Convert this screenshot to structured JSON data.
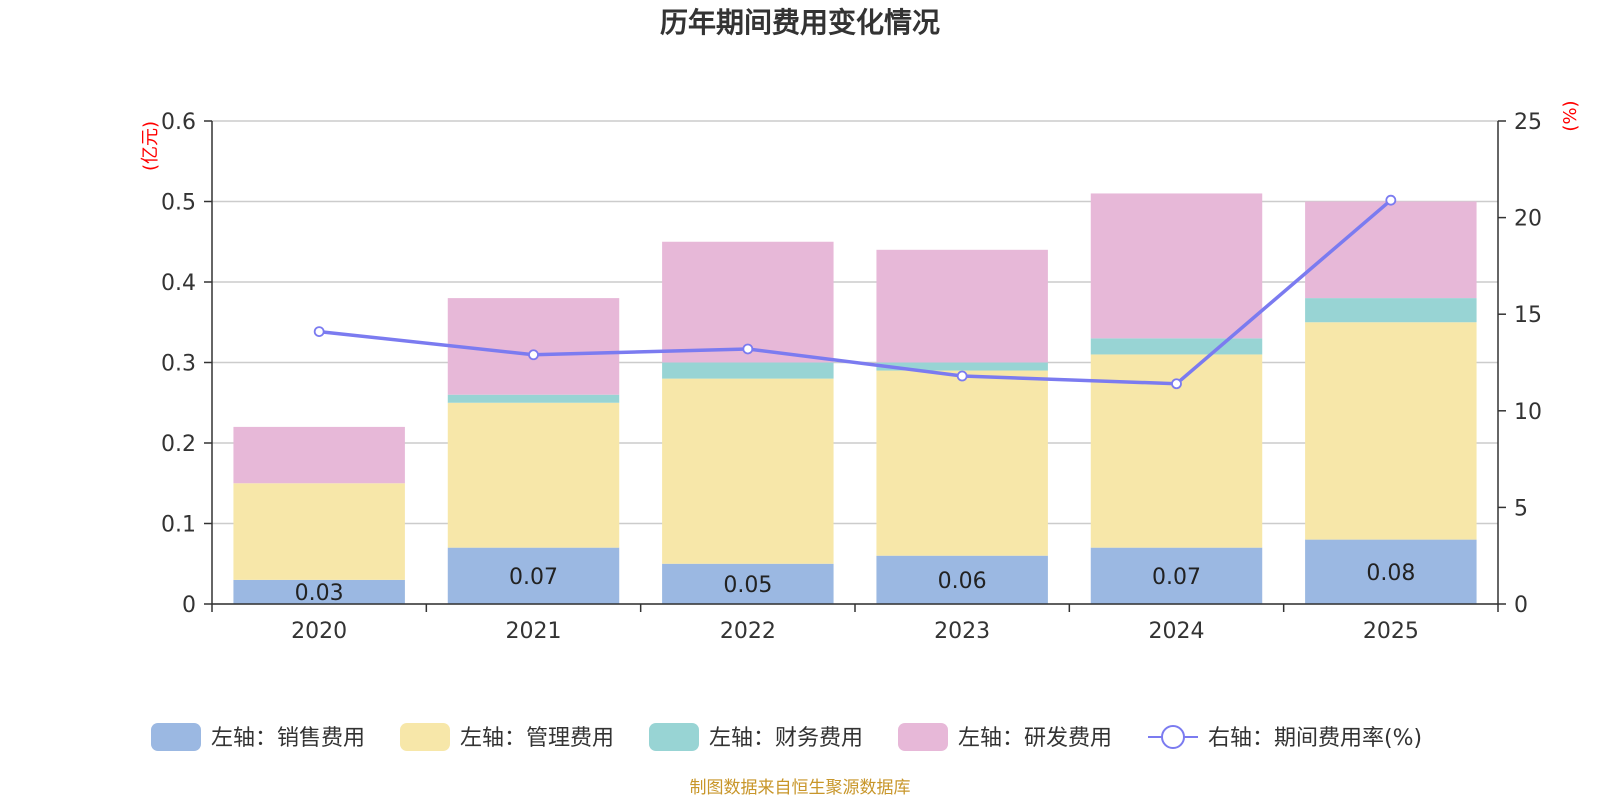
{
  "chart_data": {
    "type": "bar",
    "title": "历年期间费用变化情况",
    "categories": [
      "2020",
      "2021",
      "2022",
      "2023",
      "2024",
      "2025"
    ],
    "left_axis": {
      "unit": "(亿元)",
      "ylim": [
        0,
        0.6
      ],
      "ticks": [
        "0",
        "0.1",
        "0.2",
        "0.3",
        "0.4",
        "0.5",
        "0.6"
      ]
    },
    "right_axis": {
      "unit": "(%)",
      "ylim": [
        0,
        25
      ],
      "ticks": [
        "0",
        "5",
        "10",
        "15",
        "20",
        "25"
      ]
    },
    "series": [
      {
        "name": "左轴：销售费用",
        "kind": "bar",
        "axis": "left",
        "color": "#9bb8e2",
        "values": [
          0.03,
          0.07,
          0.05,
          0.06,
          0.07,
          0.08
        ],
        "labels": [
          "0.03",
          "0.07",
          "0.05",
          "0.06",
          "0.07",
          "0.08"
        ]
      },
      {
        "name": "左轴：管理费用",
        "kind": "bar",
        "axis": "left",
        "color": "#f7e7a9",
        "values": [
          0.12,
          0.18,
          0.23,
          0.23,
          0.24,
          0.27
        ]
      },
      {
        "name": "左轴：财务费用",
        "kind": "bar",
        "axis": "left",
        "color": "#98d4d4",
        "values": [
          0.0,
          0.01,
          0.02,
          0.01,
          0.02,
          0.03
        ]
      },
      {
        "name": "左轴：研发费用",
        "kind": "bar",
        "axis": "left",
        "color": "#e7b8d8",
        "values": [
          0.07,
          0.12,
          0.15,
          0.14,
          0.18,
          0.12
        ]
      },
      {
        "name": "右轴：期间费用率(%)",
        "kind": "line",
        "axis": "right",
        "color": "#7b7bf0",
        "values": [
          14.1,
          12.9,
          13.2,
          11.8,
          11.4,
          20.9
        ]
      }
    ],
    "grid": true,
    "legend_position": "bottom"
  },
  "source": "制图数据来自恒生聚源数据库"
}
